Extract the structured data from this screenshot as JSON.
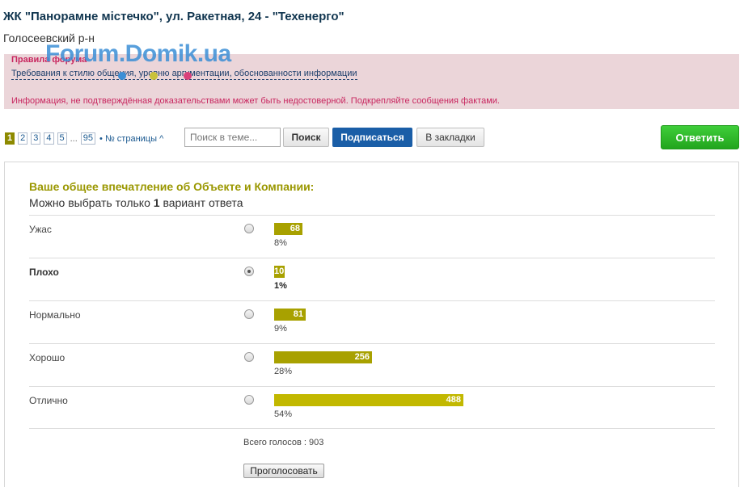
{
  "topic": {
    "title": "ЖК \"Панорамне містечко\", ул. Ракетная, 24 - \"Техенерго\"",
    "subtitle": "Голосеевский р-н"
  },
  "watermark": "Forum.Domik.ua",
  "rules": {
    "title": "Правила форума",
    "link": "Требования к стилю общения, уровню аргументации, обоснованности информации",
    "warning": "Информация, не подтверждённая доказательствами может быть недостоверной. Подкрепляйте сообщения фактами."
  },
  "pagination": {
    "pages": [
      "1",
      "2",
      "3",
      "4",
      "5"
    ],
    "active": "1",
    "ellipsis": "...",
    "last": "95",
    "jump_label": "• № страницы ^"
  },
  "toolbar": {
    "search_placeholder": "Поиск в теме...",
    "search_label": "Поиск",
    "subscribe_label": "Подписаться",
    "bookmark_label": "В закладки",
    "reply_label": "Ответить"
  },
  "colors": {
    "bar_main": "#a8a100",
    "bar_top": "#c2b800",
    "accent_green": "#22a51e",
    "subscribe_blue": "#1a5ea7"
  },
  "poll": {
    "question": "Ваше общее впечатление об Объекте и Компании:",
    "hint_prefix": "Можно выбрать только ",
    "hint_count": "1",
    "hint_suffix": " вариант ответа",
    "options": [
      {
        "label": "Ужас",
        "votes": "68",
        "percent": "8%",
        "share": 8,
        "selected": false
      },
      {
        "label": "Плохо",
        "votes": "10",
        "percent": "1%",
        "share": 1,
        "selected": true
      },
      {
        "label": "Нормально",
        "votes": "81",
        "percent": "9%",
        "share": 9,
        "selected": false
      },
      {
        "label": "Хорошо",
        "votes": "256",
        "percent": "28%",
        "share": 28,
        "selected": false
      },
      {
        "label": "Отлично",
        "votes": "488",
        "percent": "54%",
        "share": 54,
        "selected": false
      }
    ],
    "total_votes": "Всего голосов : 903",
    "vote_label": "Проголосовать"
  }
}
